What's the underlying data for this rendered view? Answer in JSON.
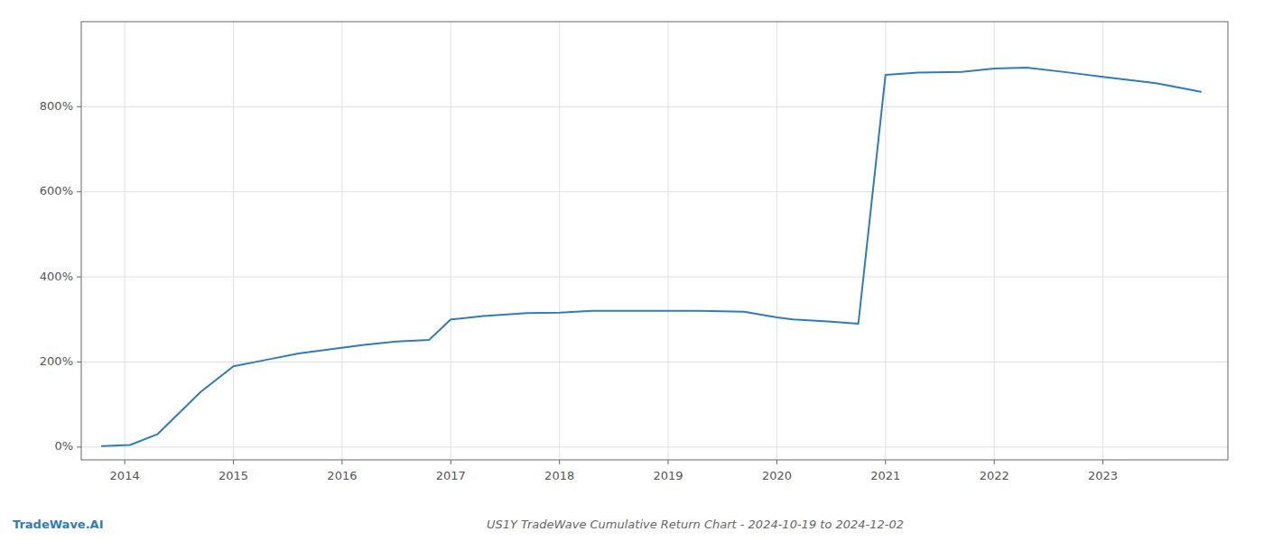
{
  "chart_data": {
    "type": "line",
    "title": "US1Y TradeWave Cumulative Return Chart - 2024-10-19 to 2024-12-02",
    "annotations": [
      "TradeWave.AI"
    ],
    "x": [
      2013.79,
      2014.05,
      2014.3,
      2014.7,
      2015.0,
      2015.3,
      2015.6,
      2015.9,
      2016.2,
      2016.5,
      2016.8,
      2017.0,
      2017.3,
      2017.7,
      2018.0,
      2018.3,
      2018.7,
      2019.0,
      2019.3,
      2019.7,
      2020.0,
      2020.15,
      2020.5,
      2020.75,
      2021.0,
      2021.3,
      2021.7,
      2022.0,
      2022.3,
      2022.7,
      2023.0,
      2023.5,
      2023.9
    ],
    "values": [
      2.5,
      5.0,
      30.0,
      130.0,
      190.0,
      205.0,
      220.0,
      230.0,
      240.0,
      248.0,
      252.0,
      300.0,
      308.0,
      315.0,
      316.0,
      320.0,
      320.0,
      320.0,
      320.0,
      318.0,
      305.0,
      300.0,
      295.0,
      290.0,
      875.0,
      880.0,
      882.0,
      890.0,
      892.0,
      880.0,
      870.0,
      855.0,
      835.0
    ],
    "color": "#2e7dba",
    "xlim": [
      2013.6,
      2024.15
    ],
    "ylim": [
      -30,
      1000
    ],
    "xticks": [
      2014,
      2015,
      2016,
      2017,
      2018,
      2019,
      2020,
      2021,
      2022,
      2023
    ],
    "yticks": [
      {
        "value": 0,
        "label": "0%"
      },
      {
        "value": 200,
        "label": "200%"
      },
      {
        "value": 400,
        "label": "400%"
      },
      {
        "value": 600,
        "label": "600%"
      },
      {
        "value": 800,
        "label": "800%"
      }
    ],
    "grid": true
  }
}
